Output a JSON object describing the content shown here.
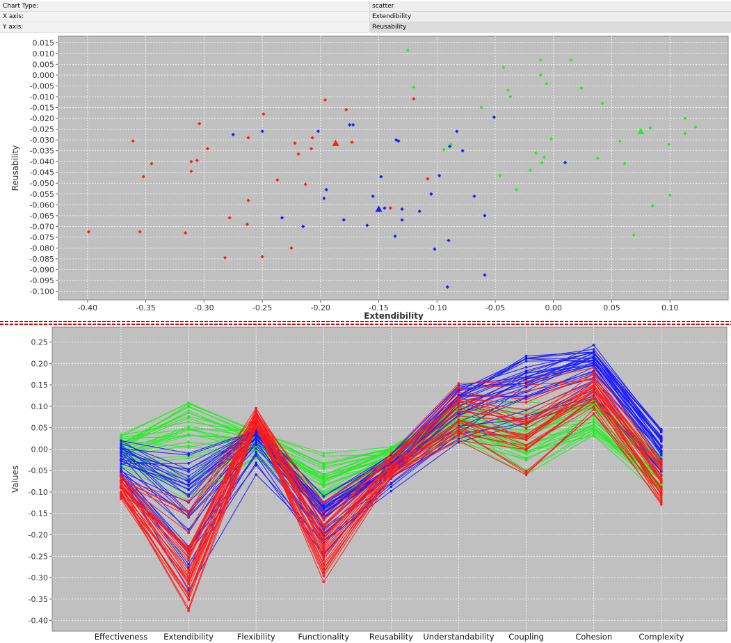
{
  "properties": [
    {
      "label": "Chart Type:",
      "value": "scatter"
    },
    {
      "label": "X axis:",
      "value": "Extendibility"
    },
    {
      "label": "Y axis:",
      "value": "Reusability"
    }
  ],
  "colors": {
    "red": "#ff1a1a",
    "blue": "#1a1aff",
    "green": "#22ee22",
    "plot_bg": "#c0c0c0",
    "grid": "#ffffff"
  },
  "chart_data": [
    {
      "type": "scatter",
      "xlabel": "Extendibility",
      "ylabel": "Reusability",
      "xlim": [
        -0.425,
        0.15
      ],
      "ylim": [
        -0.104,
        0.018
      ],
      "xticks": [
        "-0.40",
        "-0.35",
        "-0.30",
        "-0.25",
        "-0.20",
        "-0.15",
        "-0.10",
        "-0.05",
        "0.00",
        "0.05",
        "0.10"
      ],
      "yticks": [
        "0.015",
        "0.010",
        "0.005",
        "0.000",
        "-0.005",
        "-0.010",
        "-0.015",
        "-0.020",
        "-0.025",
        "-0.030",
        "-0.035",
        "-0.040",
        "-0.045",
        "-0.050",
        "-0.055",
        "-0.060",
        "-0.065",
        "-0.070",
        "-0.075",
        "-0.080",
        "-0.085",
        "-0.090",
        "-0.095",
        "-0.100"
      ],
      "grid": true,
      "series": [
        {
          "color": "red",
          "centroid": [
            -0.187,
            -0.0315
          ],
          "points": [
            [
              -0.399,
              -0.0725
            ],
            [
              -0.361,
              -0.0305
            ],
            [
              -0.355,
              -0.0725
            ],
            [
              -0.352,
              -0.047
            ],
            [
              -0.345,
              -0.041
            ],
            [
              -0.316,
              -0.073
            ],
            [
              -0.311,
              -0.04
            ],
            [
              -0.311,
              -0.0445
            ],
            [
              -0.306,
              -0.0395
            ],
            [
              -0.304,
              -0.0225
            ],
            [
              -0.297,
              -0.034
            ],
            [
              -0.282,
              -0.0845
            ],
            [
              -0.278,
              -0.066
            ],
            [
              -0.263,
              -0.069
            ],
            [
              -0.262,
              -0.058
            ],
            [
              -0.262,
              -0.029
            ],
            [
              -0.25,
              -0.084
            ],
            [
              -0.249,
              -0.018
            ],
            [
              -0.237,
              -0.0485
            ],
            [
              -0.225,
              -0.08
            ],
            [
              -0.222,
              -0.0315
            ],
            [
              -0.219,
              -0.0365
            ],
            [
              -0.213,
              -0.0505
            ],
            [
              -0.208,
              -0.034
            ],
            [
              -0.207,
              -0.029
            ],
            [
              -0.196,
              -0.0115
            ],
            [
              -0.178,
              -0.016
            ],
            [
              -0.173,
              -0.031
            ],
            [
              -0.14,
              -0.0615
            ],
            [
              -0.12,
              -0.011
            ],
            [
              -0.108,
              -0.048
            ]
          ]
        },
        {
          "color": "blue",
          "centroid": [
            -0.15,
            -0.062
          ],
          "points": [
            [
              -0.275,
              -0.0275
            ],
            [
              -0.25,
              -0.026
            ],
            [
              -0.233,
              -0.066
            ],
            [
              -0.215,
              -0.07
            ],
            [
              -0.202,
              -0.026
            ],
            [
              -0.197,
              -0.057
            ],
            [
              -0.195,
              -0.053
            ],
            [
              -0.18,
              -0.067
            ],
            [
              -0.175,
              -0.023
            ],
            [
              -0.172,
              -0.023
            ],
            [
              -0.16,
              -0.0695
            ],
            [
              -0.155,
              -0.056
            ],
            [
              -0.148,
              -0.047
            ],
            [
              -0.145,
              -0.0615
            ],
            [
              -0.136,
              -0.0745
            ],
            [
              -0.135,
              -0.03
            ],
            [
              -0.133,
              -0.0305
            ],
            [
              -0.13,
              -0.062
            ],
            [
              -0.13,
              -0.067
            ],
            [
              -0.115,
              -0.063
            ],
            [
              -0.105,
              -0.055
            ],
            [
              -0.102,
              -0.0805
            ],
            [
              -0.098,
              -0.0465
            ],
            [
              -0.091,
              -0.098
            ],
            [
              -0.09,
              -0.0765
            ],
            [
              -0.089,
              -0.033
            ],
            [
              -0.083,
              -0.026
            ],
            [
              -0.078,
              -0.035
            ],
            [
              -0.068,
              -0.056
            ],
            [
              -0.059,
              -0.0925
            ],
            [
              -0.059,
              -0.065
            ],
            [
              -0.051,
              -0.0195
            ],
            [
              0.01,
              -0.0405
            ]
          ]
        },
        {
          "color": "green",
          "centroid": [
            0.075,
            -0.026
          ],
          "points": [
            [
              -0.125,
              0.0115
            ],
            [
              -0.12,
              -0.0055
            ],
            [
              -0.094,
              -0.0345
            ],
            [
              -0.088,
              -0.032
            ],
            [
              -0.062,
              -0.015
            ],
            [
              -0.046,
              -0.0465
            ],
            [
              -0.043,
              0.0035
            ],
            [
              -0.039,
              -0.007
            ],
            [
              -0.037,
              -0.01
            ],
            [
              -0.032,
              -0.053
            ],
            [
              -0.02,
              -0.044
            ],
            [
              -0.015,
              -0.036
            ],
            [
              -0.011,
              0.0
            ],
            [
              -0.011,
              0.007
            ],
            [
              -0.01,
              -0.0405
            ],
            [
              -0.008,
              -0.038
            ],
            [
              -0.006,
              -0.004
            ],
            [
              -0.002,
              -0.0295
            ],
            [
              0.015,
              0.007
            ],
            [
              0.024,
              -0.006
            ],
            [
              0.038,
              -0.0385
            ],
            [
              0.042,
              -0.013
            ],
            [
              0.057,
              -0.0305
            ],
            [
              0.061,
              -0.041
            ],
            [
              0.069,
              -0.074
            ],
            [
              0.083,
              -0.0245
            ],
            [
              0.085,
              -0.0605
            ],
            [
              0.099,
              -0.032
            ],
            [
              0.1,
              -0.0555
            ],
            [
              0.113,
              -0.02
            ],
            [
              0.113,
              -0.027
            ],
            [
              0.122,
              -0.024
            ]
          ]
        }
      ]
    },
    {
      "type": "line",
      "ylabel": "Values",
      "ylim": [
        -0.425,
        0.285
      ],
      "yticks": [
        "0.25",
        "0.20",
        "0.15",
        "0.10",
        "0.05",
        "0.00",
        "-0.05",
        "-0.10",
        "-0.15",
        "-0.20",
        "-0.25",
        "-0.30",
        "-0.35",
        "-0.40"
      ],
      "categories": [
        "Effectiveness",
        "Extendibility",
        "Flexibility",
        "Functionality",
        "Reusability",
        "Understandability",
        "Coupling",
        "Cohesion",
        "Complexity"
      ],
      "grid": true,
      "groups": [
        {
          "color": "red",
          "count": 31,
          "means": [
            -0.085,
            -0.265,
            0.075,
            -0.22,
            -0.04,
            0.08,
            0.05,
            0.14,
            -0.075
          ],
          "low": [
            -0.12,
            -0.4,
            0.05,
            -0.31,
            -0.075,
            0.02,
            -0.08,
            0.08,
            -0.14
          ],
          "high": [
            -0.05,
            -0.1,
            0.1,
            -0.12,
            -0.01,
            0.165,
            0.17,
            0.19,
            -0.02
          ]
        },
        {
          "color": "blue",
          "count": 33,
          "means": [
            -0.04,
            -0.15,
            0.03,
            -0.17,
            -0.05,
            0.085,
            0.14,
            0.19,
            0.005
          ],
          "low": [
            -0.09,
            -0.33,
            -0.065,
            -0.25,
            -0.1,
            0.01,
            0.06,
            0.12,
            -0.06
          ],
          "high": [
            0.02,
            -0.01,
            0.06,
            -0.11,
            -0.01,
            0.15,
            0.24,
            0.255,
            0.055
          ]
        },
        {
          "color": "green",
          "count": 32,
          "means": [
            0.0,
            0.04,
            0.02,
            -0.07,
            -0.015,
            0.06,
            0.02,
            0.07,
            -0.06
          ],
          "low": [
            -0.04,
            -0.12,
            -0.02,
            -0.14,
            -0.05,
            0.01,
            -0.06,
            0.03,
            -0.11
          ],
          "high": [
            0.035,
            0.12,
            0.05,
            -0.01,
            0.01,
            0.11,
            0.11,
            0.12,
            -0.01
          ]
        }
      ]
    }
  ]
}
